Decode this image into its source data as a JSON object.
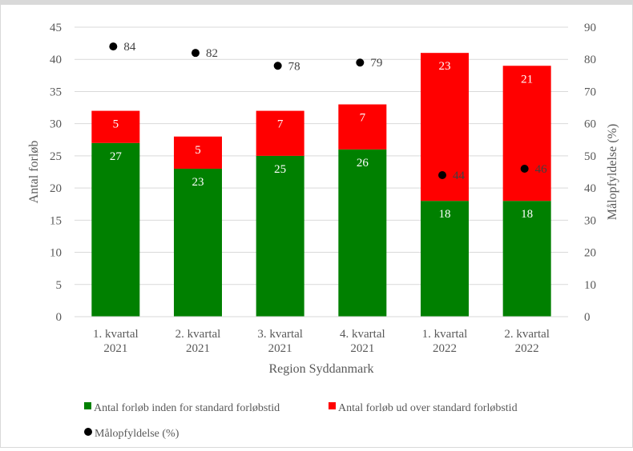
{
  "chart_data": {
    "type": "bar",
    "stacked": true,
    "categories": [
      [
        "1. kvartal",
        "2021"
      ],
      [
        "2. kvartal",
        "2021"
      ],
      [
        "3. kvartal",
        "2021"
      ],
      [
        "4. kvartal",
        "2021"
      ],
      [
        "1. kvartal",
        "2022"
      ],
      [
        "2. kvartal",
        "2022"
      ]
    ],
    "series": [
      {
        "name": "Antal forløb inden for standard forløbstid",
        "color": "#008000",
        "values": [
          27,
          23,
          25,
          26,
          18,
          18
        ]
      },
      {
        "name": "Antal forløb ud over standard forløbstid",
        "color": "#ff0000",
        "values": [
          5,
          5,
          7,
          7,
          23,
          21
        ]
      }
    ],
    "secondary_series": {
      "name": "Målopfyldelse (%)",
      "type": "scatter",
      "color": "#000000",
      "values": [
        84,
        82,
        78,
        79,
        44,
        46
      ]
    },
    "xlabel": "Region Syddanmark",
    "ylabel": "Antal forløb",
    "y2label": "Målopfyldelse (%)",
    "ylim": [
      0,
      45
    ],
    "yticks": [
      0,
      5,
      10,
      15,
      20,
      25,
      30,
      35,
      40,
      45
    ],
    "y2lim": [
      0,
      90
    ],
    "y2ticks": [
      0,
      10,
      20,
      30,
      40,
      50,
      60,
      70,
      80,
      90
    ],
    "grid": true,
    "legend_position": "bottom"
  }
}
